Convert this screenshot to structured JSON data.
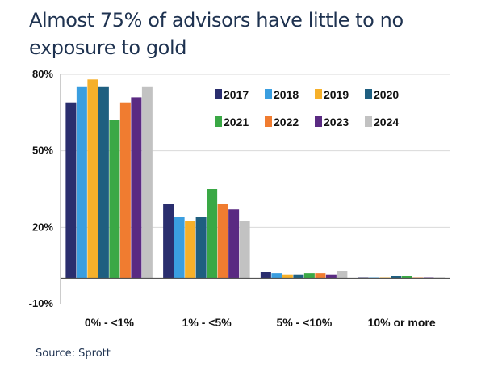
{
  "title": "Almost 75% of advisors have little to no exposure to gold",
  "source": "Source: Sprott",
  "chart_data": {
    "type": "bar",
    "categories": [
      "0% - <1%",
      "1% - <5%",
      "5% - <10%",
      "10% or more"
    ],
    "ylim": [
      -10,
      80
    ],
    "yticks": [
      {
        "value": 80,
        "label": "80%"
      },
      {
        "value": 50,
        "label": "50%"
      },
      {
        "value": 20,
        "label": "20%"
      },
      {
        "value": -10,
        "label": "-10%"
      }
    ],
    "grid": true,
    "legend_position": "top-right",
    "series": [
      {
        "name": "2017",
        "color": "#2a2e6e",
        "values": [
          69,
          29,
          2.5,
          0.3
        ]
      },
      {
        "name": "2018",
        "color": "#3a9ee0",
        "values": [
          75,
          24,
          2,
          0.3
        ]
      },
      {
        "name": "2019",
        "color": "#f6b02a",
        "values": [
          78,
          22.5,
          1.5,
          0.3
        ]
      },
      {
        "name": "2020",
        "color": "#1f5f80",
        "values": [
          75,
          24,
          1.5,
          0.8
        ]
      },
      {
        "name": "2021",
        "color": "#3aa845",
        "values": [
          62,
          35,
          2,
          1
        ]
      },
      {
        "name": "2022",
        "color": "#f07c30",
        "values": [
          69,
          29,
          2,
          0.3
        ]
      },
      {
        "name": "2023",
        "color": "#5a2a82",
        "values": [
          71,
          27,
          1.5,
          0.3
        ]
      },
      {
        "name": "2024",
        "color": "#c2c2c2",
        "values": [
          75,
          22.5,
          3,
          0.3
        ]
      }
    ]
  }
}
